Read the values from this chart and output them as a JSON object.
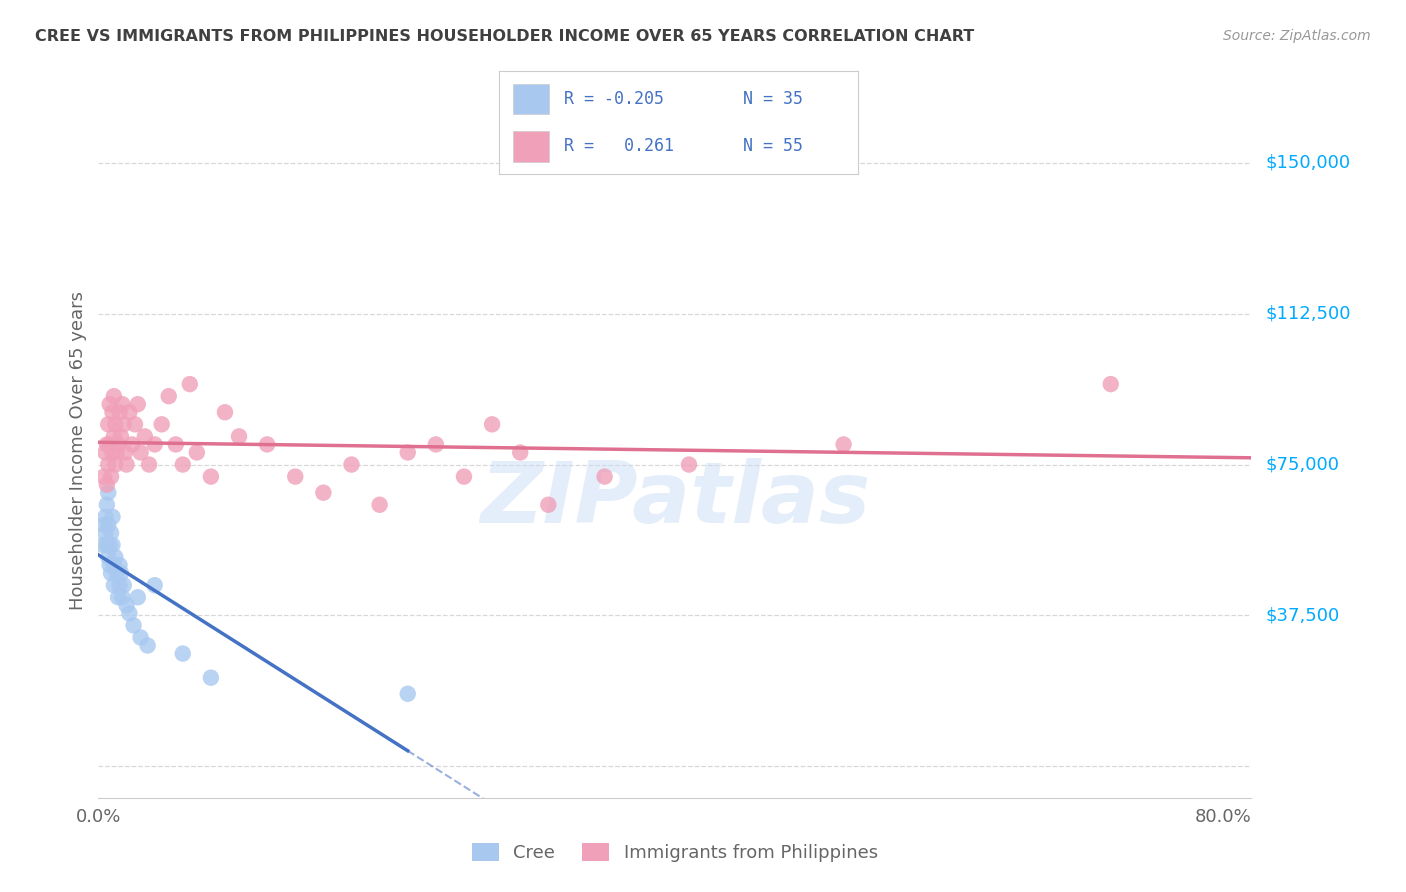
{
  "title": "CREE VS IMMIGRANTS FROM PHILIPPINES HOUSEHOLDER INCOME OVER 65 YEARS CORRELATION CHART",
  "source": "Source: ZipAtlas.com",
  "ylabel": "Householder Income Over 65 years",
  "xlim": [
    0.0,
    0.82
  ],
  "ylim": [
    -8000,
    165000
  ],
  "ytick_vals": [
    0,
    37500,
    75000,
    112500,
    150000
  ],
  "ytick_labels": [
    "",
    "$37,500",
    "$75,000",
    "$112,500",
    "$150,000"
  ],
  "xtick_vals": [
    0.0,
    0.8
  ],
  "xtick_labels": [
    "0.0%",
    "80.0%"
  ],
  "cree_R": -0.205,
  "cree_N": 35,
  "phil_R": 0.261,
  "phil_N": 55,
  "watermark": "ZIPatlas",
  "cree_scatter_color": "#a8c8f0",
  "phil_scatter_color": "#f0a0b8",
  "cree_line_color": "#4472c4",
  "phil_line_color": "#e07090",
  "grid_color": "#d8d8d8",
  "background_color": "#ffffff",
  "title_color": "#404040",
  "right_label_color": "#00aaff",
  "legend_text_color": "#4472c4",
  "cree_x": [
    0.003,
    0.004,
    0.005,
    0.005,
    0.006,
    0.006,
    0.007,
    0.007,
    0.007,
    0.008,
    0.008,
    0.009,
    0.009,
    0.01,
    0.01,
    0.011,
    0.011,
    0.012,
    0.013,
    0.014,
    0.015,
    0.015,
    0.016,
    0.017,
    0.018,
    0.02,
    0.022,
    0.025,
    0.028,
    0.03,
    0.035,
    0.04,
    0.06,
    0.08,
    0.22
  ],
  "cree_y": [
    55000,
    60000,
    62000,
    58000,
    65000,
    55000,
    68000,
    60000,
    52000,
    55000,
    50000,
    58000,
    48000,
    55000,
    62000,
    50000,
    45000,
    52000,
    48000,
    42000,
    50000,
    45000,
    48000,
    42000,
    45000,
    40000,
    38000,
    35000,
    42000,
    32000,
    30000,
    45000,
    28000,
    22000,
    18000
  ],
  "phil_x": [
    0.004,
    0.005,
    0.006,
    0.006,
    0.007,
    0.007,
    0.008,
    0.008,
    0.009,
    0.01,
    0.01,
    0.011,
    0.011,
    0.012,
    0.012,
    0.013,
    0.014,
    0.015,
    0.016,
    0.017,
    0.018,
    0.019,
    0.02,
    0.022,
    0.024,
    0.026,
    0.028,
    0.03,
    0.033,
    0.036,
    0.04,
    0.045,
    0.05,
    0.055,
    0.06,
    0.065,
    0.07,
    0.08,
    0.09,
    0.1,
    0.12,
    0.14,
    0.16,
    0.18,
    0.2,
    0.22,
    0.24,
    0.26,
    0.28,
    0.3,
    0.32,
    0.36,
    0.42,
    0.53,
    0.72
  ],
  "phil_y": [
    72000,
    78000,
    70000,
    80000,
    75000,
    85000,
    80000,
    90000,
    72000,
    88000,
    78000,
    82000,
    92000,
    75000,
    85000,
    78000,
    80000,
    88000,
    82000,
    90000,
    85000,
    78000,
    75000,
    88000,
    80000,
    85000,
    90000,
    78000,
    82000,
    75000,
    80000,
    85000,
    92000,
    80000,
    75000,
    95000,
    78000,
    72000,
    88000,
    82000,
    80000,
    72000,
    68000,
    75000,
    65000,
    78000,
    80000,
    72000,
    85000,
    78000,
    65000,
    72000,
    75000,
    80000,
    95000
  ]
}
